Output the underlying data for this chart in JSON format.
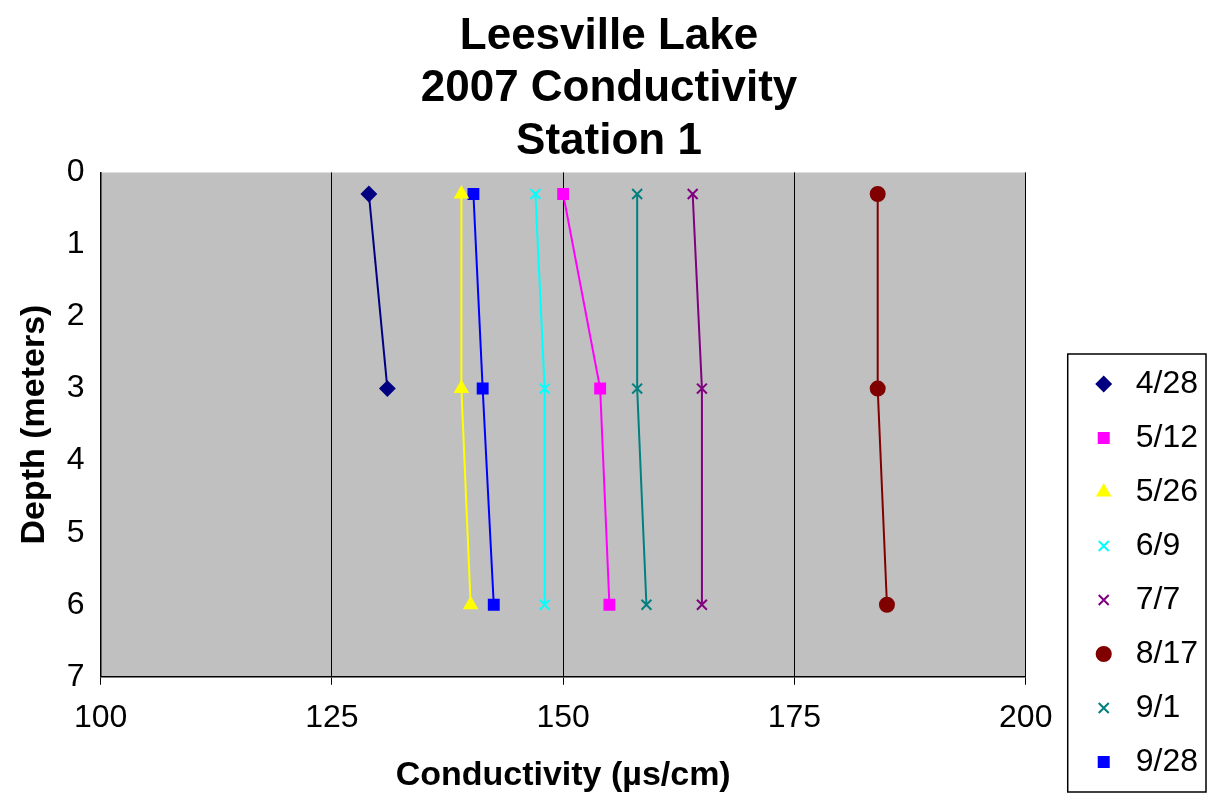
{
  "chart_data": {
    "type": "line",
    "title": "Leesville Lake\n2007 Conductivity\nStation 1",
    "xlabel": "Conductivity (µs/cm)",
    "ylabel": "Depth (meters)",
    "xlim": [
      100,
      200
    ],
    "xticks": [
      100,
      125,
      150,
      175,
      200
    ],
    "ylim": [
      7,
      0
    ],
    "yticks": [
      0,
      1,
      2,
      3,
      4,
      5,
      6,
      7
    ],
    "grid": "x",
    "legend": "right",
    "series": [
      {
        "name": "4/28",
        "color": "#000080",
        "marker": "diamond",
        "x": [
          129,
          131
        ],
        "values": [
          0.3,
          3
        ]
      },
      {
        "name": "5/12",
        "color": "#ff00ff",
        "marker": "square",
        "x": [
          150,
          154,
          155
        ],
        "values": [
          0.3,
          3,
          6
        ]
      },
      {
        "name": "5/26",
        "color": "#ffff00",
        "marker": "triangle",
        "x": [
          139,
          139,
          140
        ],
        "values": [
          0.3,
          3,
          6
        ]
      },
      {
        "name": "6/9",
        "color": "#00ffff",
        "marker": "cross",
        "x": [
          147,
          148,
          148
        ],
        "values": [
          0.3,
          3,
          6
        ]
      },
      {
        "name": "7/7",
        "color": "#800080",
        "marker": "cross",
        "x": [
          164,
          165,
          165
        ],
        "values": [
          0.3,
          3,
          6
        ]
      },
      {
        "name": "8/17",
        "color": "#800000",
        "marker": "circle",
        "x": [
          184,
          184,
          185
        ],
        "values": [
          0.3,
          3,
          6
        ]
      },
      {
        "name": "9/1",
        "color": "#008080",
        "marker": "cross",
        "x": [
          158,
          158,
          159
        ],
        "values": [
          0.3,
          3,
          6
        ]
      },
      {
        "name": "9/28",
        "color": "#0000ff",
        "marker": "square",
        "x": [
          140.3,
          141.3,
          142.5
        ],
        "values": [
          0.3,
          3,
          6
        ]
      }
    ]
  }
}
